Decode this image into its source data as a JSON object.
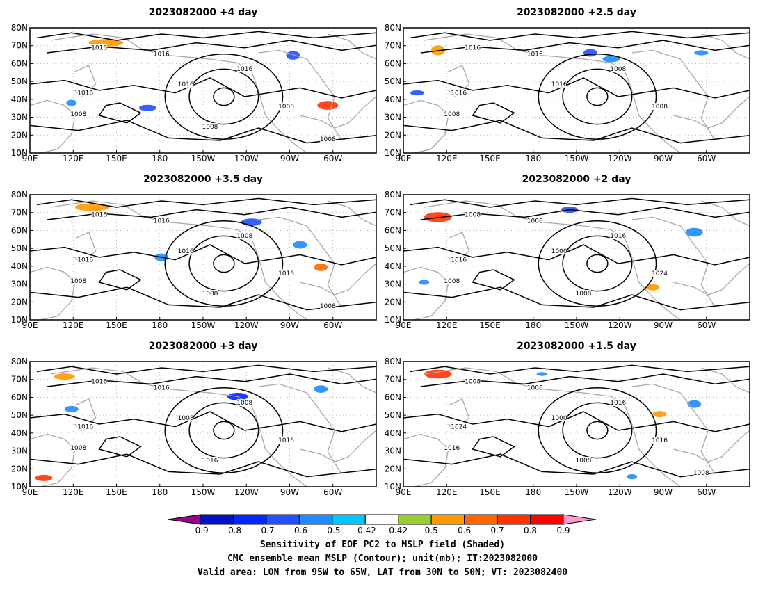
{
  "panels": [
    {
      "title": "2023082000 +4 day",
      "contour_labels": [
        "1016",
        "1016",
        "1016",
        "1016",
        "1016",
        "1008",
        "1008",
        "1008",
        "1008"
      ]
    },
    {
      "title": "2023082000 +2.5 day",
      "contour_labels": [
        "1016",
        "1016",
        "1008",
        "1016",
        "1016",
        "1008",
        "1008"
      ]
    },
    {
      "title": "2023082000 +3.5 day",
      "contour_labels": [
        "1016",
        "1016",
        "1008",
        "1016",
        "1016",
        "1016",
        "1008",
        "1008",
        "1008"
      ]
    },
    {
      "title": "2023082000 +2 day",
      "contour_labels": [
        "1008",
        "1008",
        "1016",
        "1000",
        "1016",
        "1024",
        "1008",
        "1008"
      ]
    },
    {
      "title": "2023082000 +3 day",
      "contour_labels": [
        "1016",
        "1016",
        "1008",
        "1008",
        "1016",
        "1016",
        "1008",
        "1016"
      ]
    },
    {
      "title": "2023082000 +1.5 day",
      "contour_labels": [
        "1008",
        "1008",
        "1016",
        "1000",
        "1024",
        "1016",
        "1016",
        "1008",
        "1008"
      ]
    }
  ],
  "lon_ticks": [
    "90E",
    "120E",
    "150E",
    "180",
    "150W",
    "120W",
    "90W",
    "60W"
  ],
  "lat_ticks": [
    "80N",
    "70N",
    "60N",
    "50N",
    "40N",
    "30N",
    "20N",
    "10N"
  ],
  "colorbar": {
    "ticks": [
      "-0.9",
      "-0.8",
      "-0.7",
      "-0.6",
      "-0.5",
      "-0.42",
      "0.42",
      "0.5",
      "0.6",
      "0.7",
      "0.8",
      "0.9"
    ],
    "colors": [
      "#a0008a",
      "#0010c8",
      "#0028ff",
      "#2050ff",
      "#1e8cff",
      "#00c8ff",
      "#ffffff",
      "#9acd32",
      "#ff9900",
      "#ff6600",
      "#ff3300",
      "#ff0000",
      "#ff99cc"
    ]
  },
  "captions": {
    "line1": "Sensitivity of EOF PC2 to MSLP field (Shaded)",
    "line2": "CMC ensemble mean MSLP (Contour); unit(mb); IT:2023082000",
    "line3": "Valid area: LON from 95W to 65W, LAT from 30N to 50N; VT: 2023082400"
  }
}
